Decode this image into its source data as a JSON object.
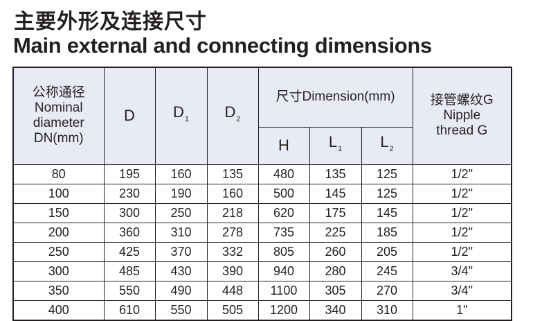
{
  "title_cn": "主要外形及连接尺寸",
  "title_en": "Main external and connecting dimensions",
  "table": {
    "headers": {
      "dn": [
        "公称通径",
        "Nominal",
        "diameter",
        "DN(mm)"
      ],
      "d": "D",
      "d1": {
        "base": "D",
        "sub": "1"
      },
      "d2": {
        "base": "D",
        "sub": "2"
      },
      "dimension": "尺寸Dimension(mm)",
      "h": "H",
      "l1": {
        "base": "L",
        "sub": "1"
      },
      "l2": {
        "base": "L",
        "sub": "2"
      },
      "nipple": [
        "接管螺纹G",
        "Nipple",
        "thread G"
      ]
    },
    "rows": [
      [
        "80",
        "195",
        "160",
        "135",
        "480",
        "135",
        "125",
        "1/2\""
      ],
      [
        "100",
        "230",
        "190",
        "160",
        "500",
        "145",
        "125",
        "1/2\""
      ],
      [
        "150",
        "300",
        "250",
        "218",
        "620",
        "175",
        "145",
        "1/2\""
      ],
      [
        "200",
        "360",
        "310",
        "278",
        "735",
        "225",
        "185",
        "1/2\""
      ],
      [
        "250",
        "425",
        "370",
        "332",
        "805",
        "260",
        "205",
        "1/2\""
      ],
      [
        "300",
        "485",
        "430",
        "390",
        "940",
        "280",
        "245",
        "3/4\""
      ],
      [
        "350",
        "550",
        "490",
        "448",
        "1100",
        "305",
        "270",
        "3/4\""
      ],
      [
        "400",
        "610",
        "550",
        "505",
        "1200",
        "340",
        "310",
        "1\""
      ]
    ]
  }
}
